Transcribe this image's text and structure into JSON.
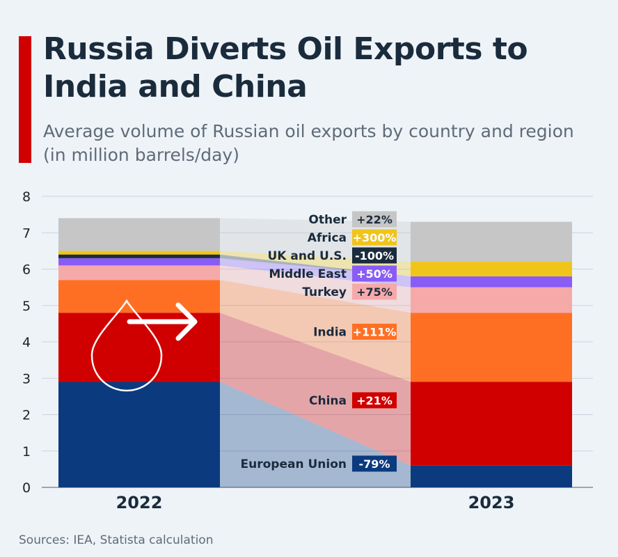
{
  "header": {
    "title": "Russia Diverts Oil Exports to India and China",
    "subtitle": "Average volume of Russian oil exports by country and region (in million barrels/day)"
  },
  "footer": {
    "source": "Sources: IEA, Statista calculation"
  },
  "colors": {
    "accent": "#d10000",
    "european_union": "#0b3a7e",
    "china": "#d10000",
    "india": "#ff6f23",
    "turkey": "#f5a9a9",
    "middle_east": "#8a5cf6",
    "uk_us": "#1a2b3c",
    "africa": "#f0c419",
    "other": "#c6c6c6"
  },
  "chart_data": {
    "type": "bar",
    "stacked": true,
    "title": "Russia Diverts Oil Exports to India and China",
    "subtitle": "Average volume of Russian oil exports by country and region (in million barrels/day)",
    "categories": [
      "2022",
      "2023"
    ],
    "ylim": [
      0,
      8
    ],
    "yticks": [
      0,
      1,
      2,
      3,
      4,
      5,
      6,
      7,
      8
    ],
    "grid": true,
    "series": [
      {
        "name": "European Union",
        "values": [
          2.9,
          0.6
        ],
        "change": "-79%",
        "color": "#0b3a7e"
      },
      {
        "name": "China",
        "values": [
          1.9,
          2.3
        ],
        "change": "+21%",
        "color": "#d10000"
      },
      {
        "name": "India",
        "values": [
          0.9,
          1.9
        ],
        "change": "+111%",
        "color": "#ff6f23"
      },
      {
        "name": "Turkey",
        "values": [
          0.4,
          0.7
        ],
        "change": "+75%",
        "color": "#f5a9a9"
      },
      {
        "name": "Middle East",
        "values": [
          0.2,
          0.3
        ],
        "change": "+50%",
        "color": "#8a5cf6"
      },
      {
        "name": "UK and U.S.",
        "values": [
          0.1,
          0.0
        ],
        "change": "-100%",
        "color": "#1a2b3c"
      },
      {
        "name": "Africa",
        "values": [
          0.1,
          0.4
        ],
        "change": "+300%",
        "color": "#f0c419"
      },
      {
        "name": "Other",
        "values": [
          0.9,
          1.1
        ],
        "change": "+22%",
        "color": "#c6c6c6"
      }
    ]
  }
}
